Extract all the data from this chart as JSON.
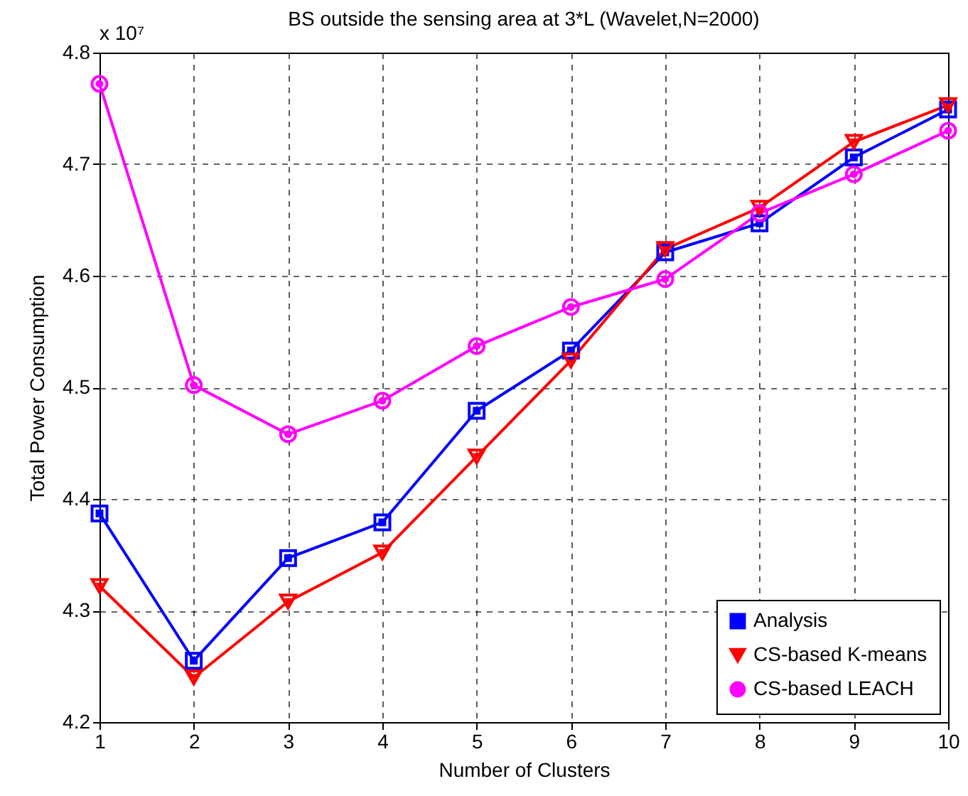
{
  "chart_data": {
    "type": "line",
    "title": "BS outside the sensing area at 3*L (Wavelet,N=2000)",
    "xlabel": "Number of Clusters",
    "ylabel": "Total Power Consumption",
    "annotations": [
      "x 10⁷"
    ],
    "x": [
      1,
      2,
      3,
      4,
      5,
      6,
      7,
      8,
      9,
      10
    ],
    "series": [
      {
        "name": "Analysis",
        "color": "#0000ff",
        "marker": "square",
        "values": [
          4.387,
          4.255,
          4.347,
          4.379,
          4.479,
          4.533,
          4.621,
          4.647,
          4.706,
          4.749
        ]
      },
      {
        "name": "CS-based K-means",
        "color": "#ff0000",
        "marker": "triangle",
        "values": [
          4.322,
          4.24,
          4.308,
          4.352,
          4.438,
          4.524,
          4.624,
          4.661,
          4.72,
          4.753
        ]
      },
      {
        "name": "CS-based LEACH",
        "color": "#ff00ff",
        "marker": "circle",
        "values": [
          4.772,
          4.502,
          4.458,
          4.488,
          4.537,
          4.572,
          4.597,
          4.656,
          4.691,
          4.73
        ]
      }
    ],
    "xlim": [
      1,
      10
    ],
    "xticks": [
      1,
      2,
      3,
      4,
      5,
      6,
      7,
      8,
      9,
      10
    ],
    "ylim": [
      4.2,
      4.8
    ],
    "yticks": [
      4.2,
      4.3,
      4.4,
      4.5,
      4.6,
      4.7,
      4.8
    ],
    "grid": true,
    "legend": "bottom right",
    "line_style": "solid"
  }
}
